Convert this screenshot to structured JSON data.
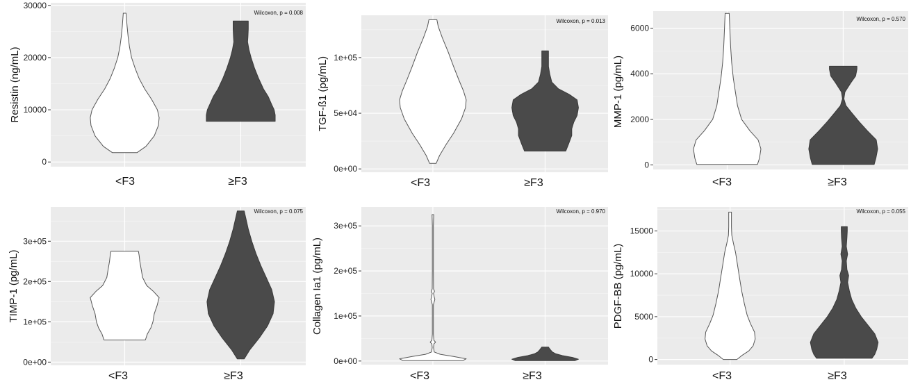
{
  "colors": {
    "panel_bg": "#ebebeb",
    "grid_major": "#ffffff",
    "grid_minor": "#f4f4f4",
    "violin_lt_fill": "#ffffff",
    "violin_ge_fill": "#4a4a4a",
    "outline": "#555555"
  },
  "chart_data": [
    {
      "type": "violin",
      "ylabel": "Resistin (ng/mL)",
      "annotation": "Wilcoxon, p = 0.008",
      "categories": [
        "<F3",
        "≥F3"
      ],
      "yticks": [
        0,
        10000,
        20000,
        30000
      ],
      "ytick_labels": [
        "0",
        "10000",
        "20000",
        "30000"
      ],
      "ylim": [
        -900,
        30500
      ],
      "series": [
        {
          "category": "<F3",
          "fill": "white",
          "profile": [
            [
              1800,
              0.36
            ],
            [
              3000,
              0.62
            ],
            [
              5000,
              0.86
            ],
            [
              7000,
              0.98
            ],
            [
              8500,
              1.0
            ],
            [
              10000,
              0.95
            ],
            [
              12000,
              0.78
            ],
            [
              14000,
              0.58
            ],
            [
              16000,
              0.42
            ],
            [
              18000,
              0.3
            ],
            [
              20000,
              0.2
            ],
            [
              22000,
              0.14
            ],
            [
              24000,
              0.1
            ],
            [
              26000,
              0.07
            ],
            [
              28500,
              0.04
            ]
          ]
        },
        {
          "category": "≥F3",
          "fill": "dark",
          "profile": [
            [
              7800,
              1.0
            ],
            [
              9000,
              1.0
            ],
            [
              10000,
              0.97
            ],
            [
              11000,
              0.9
            ],
            [
              12500,
              0.8
            ],
            [
              14000,
              0.66
            ],
            [
              16000,
              0.52
            ],
            [
              18000,
              0.4
            ],
            [
              20000,
              0.3
            ],
            [
              21500,
              0.24
            ],
            [
              23000,
              0.2
            ],
            [
              24000,
              0.21
            ],
            [
              25500,
              0.22
            ],
            [
              27000,
              0.22
            ]
          ]
        }
      ]
    },
    {
      "type": "violin",
      "ylabel": "TGF-ß1 (pg/mL)",
      "annotation": "Wilcoxon, p = 0.013",
      "categories": [
        "<F3",
        "≥F3"
      ],
      "yticks": [
        0,
        50000,
        100000
      ],
      "ytick_labels": [
        "0e+00",
        "5e+04",
        "1e+05"
      ],
      "ylim": [
        -3000,
        138000
      ],
      "series": [
        {
          "category": "<F3",
          "fill": "white",
          "profile": [
            [
              5000,
              0.1
            ],
            [
              12000,
              0.2
            ],
            [
              22000,
              0.4
            ],
            [
              32000,
              0.62
            ],
            [
              45000,
              0.86
            ],
            [
              55000,
              0.98
            ],
            [
              62000,
              1.0
            ],
            [
              70000,
              0.92
            ],
            [
              80000,
              0.78
            ],
            [
              92000,
              0.62
            ],
            [
              105000,
              0.46
            ],
            [
              118000,
              0.28
            ],
            [
              128000,
              0.16
            ],
            [
              134000,
              0.12
            ]
          ]
        },
        {
          "category": "≥F3",
          "fill": "dark",
          "profile": [
            [
              16000,
              0.62
            ],
            [
              22000,
              0.7
            ],
            [
              30000,
              0.8
            ],
            [
              36000,
              0.8
            ],
            [
              42000,
              0.86
            ],
            [
              48000,
              0.96
            ],
            [
              55000,
              1.0
            ],
            [
              62000,
              0.96
            ],
            [
              67000,
              0.72
            ],
            [
              72000,
              0.4
            ],
            [
              78000,
              0.2
            ],
            [
              85000,
              0.14
            ],
            [
              92000,
              0.1
            ],
            [
              100000,
              0.1
            ],
            [
              106000,
              0.1
            ]
          ]
        }
      ]
    },
    {
      "type": "violin",
      "ylabel": "MMP-1 (pg/mL)",
      "annotation": "Wilcoxon, p = 0.570",
      "categories": [
        "<F3",
        "≥F3"
      ],
      "yticks": [
        0,
        2000,
        4000,
        6000
      ],
      "ytick_labels": [
        "0",
        "2000",
        "4000",
        "6000"
      ],
      "ylim": [
        -200,
        6750
      ],
      "series": [
        {
          "category": "<F3",
          "fill": "white",
          "profile": [
            [
              20,
              0.88
            ],
            [
              300,
              0.94
            ],
            [
              700,
              0.98
            ],
            [
              1100,
              0.9
            ],
            [
              1500,
              0.66
            ],
            [
              2000,
              0.42
            ],
            [
              2600,
              0.3
            ],
            [
              3200,
              0.24
            ],
            [
              3800,
              0.18
            ],
            [
              4500,
              0.13
            ],
            [
              5200,
              0.1
            ],
            [
              5900,
              0.08
            ],
            [
              6650,
              0.06
            ]
          ]
        },
        {
          "category": "≥F3",
          "fill": "dark",
          "profile": [
            [
              20,
              0.9
            ],
            [
              300,
              0.95
            ],
            [
              700,
              1.0
            ],
            [
              1100,
              0.96
            ],
            [
              1500,
              0.7
            ],
            [
              1900,
              0.46
            ],
            [
              2300,
              0.24
            ],
            [
              2600,
              0.08
            ],
            [
              2900,
              0.02
            ],
            [
              3200,
              0.05
            ],
            [
              3600,
              0.22
            ],
            [
              3900,
              0.36
            ],
            [
              4200,
              0.4
            ],
            [
              4330,
              0.4
            ]
          ]
        }
      ]
    },
    {
      "type": "violin",
      "ylabel": "TIMP-1 (pg/mL)",
      "annotation": "Wilcoxon, p = 0.075",
      "categories": [
        "<F3",
        "≥F3"
      ],
      "yticks": [
        0,
        100000,
        200000,
        300000
      ],
      "ytick_labels": [
        "0e+00",
        "1e+05",
        "2e+05",
        "3e+05"
      ],
      "ylim": [
        -8000,
        385000
      ],
      "series": [
        {
          "category": "<F3",
          "fill": "white",
          "profile": [
            [
              55000,
              0.6
            ],
            [
              70000,
              0.66
            ],
            [
              85000,
              0.76
            ],
            [
              100000,
              0.82
            ],
            [
              120000,
              0.86
            ],
            [
              140000,
              0.94
            ],
            [
              160000,
              1.0
            ],
            [
              175000,
              0.84
            ],
            [
              190000,
              0.64
            ],
            [
              210000,
              0.52
            ],
            [
              230000,
              0.48
            ],
            [
              250000,
              0.44
            ],
            [
              265000,
              0.42
            ],
            [
              275000,
              0.4
            ]
          ]
        },
        {
          "category": "≥F3",
          "fill": "dark",
          "profile": [
            [
              8000,
              0.1
            ],
            [
              30000,
              0.26
            ],
            [
              60000,
              0.54
            ],
            [
              90000,
              0.78
            ],
            [
              120000,
              0.94
            ],
            [
              150000,
              0.98
            ],
            [
              180000,
              0.9
            ],
            [
              210000,
              0.74
            ],
            [
              240000,
              0.58
            ],
            [
              270000,
              0.44
            ],
            [
              300000,
              0.32
            ],
            [
              330000,
              0.22
            ],
            [
              360000,
              0.14
            ],
            [
              375000,
              0.1
            ]
          ]
        }
      ]
    },
    {
      "type": "violin",
      "ylabel": "Collagen Ia1 (pg/mL)",
      "annotation": "Wilcoxon, p = 0.970",
      "categories": [
        "<F3",
        "≥F3"
      ],
      "yticks": [
        0,
        100000,
        200000,
        300000
      ],
      "ytick_labels": [
        "0e+00",
        "1e+05",
        "2e+05",
        "3e+05"
      ],
      "ylim": [
        -8000,
        342000
      ],
      "series": [
        {
          "category": "<F3",
          "fill": "white",
          "profile": [
            [
              1000,
              0.9
            ],
            [
              5000,
              1.0
            ],
            [
              10000,
              0.62
            ],
            [
              15000,
              0.22
            ],
            [
              20000,
              0.04
            ],
            [
              30000,
              0.02
            ],
            [
              38000,
              0.03
            ],
            [
              42000,
              0.08
            ],
            [
              46000,
              0.03
            ],
            [
              60000,
              0.015
            ],
            [
              125000,
              0.015
            ],
            [
              132000,
              0.04
            ],
            [
              137000,
              0.06
            ],
            [
              142000,
              0.04
            ],
            [
              150000,
              0.02
            ],
            [
              155000,
              0.05
            ],
            [
              160000,
              0.02
            ],
            [
              200000,
              0.015
            ],
            [
              300000,
              0.015
            ],
            [
              322000,
              0.025
            ],
            [
              325000,
              0.025
            ]
          ]
        },
        {
          "category": "≥F3",
          "fill": "dark",
          "profile": [
            [
              1000,
              0.9
            ],
            [
              4000,
              1.0
            ],
            [
              8000,
              0.82
            ],
            [
              12000,
              0.52
            ],
            [
              16000,
              0.32
            ],
            [
              20000,
              0.22
            ],
            [
              25000,
              0.16
            ],
            [
              29000,
              0.12
            ],
            [
              31000,
              0.1
            ]
          ]
        }
      ]
    },
    {
      "type": "violin",
      "ylabel": "PDGF-BB (pg/mL)",
      "annotation": "Wilcoxon, p = 0.055",
      "categories": [
        "<F3",
        "≥F3"
      ],
      "yticks": [
        0,
        5000,
        10000,
        15000
      ],
      "ytick_labels": [
        "0",
        "5000",
        "10000",
        "15000"
      ],
      "ylim": [
        -600,
        17800
      ],
      "series": [
        {
          "category": "<F3",
          "fill": "white",
          "profile": [
            [
              0,
              0.2
            ],
            [
              500,
              0.36
            ],
            [
              1000,
              0.55
            ],
            [
              1600,
              0.68
            ],
            [
              2400,
              0.74
            ],
            [
              3200,
              0.72
            ],
            [
              4200,
              0.6
            ],
            [
              5200,
              0.5
            ],
            [
              6500,
              0.42
            ],
            [
              8000,
              0.34
            ],
            [
              9500,
              0.28
            ],
            [
              11000,
              0.22
            ],
            [
              12500,
              0.16
            ],
            [
              13500,
              0.1
            ],
            [
              14500,
              0.05
            ],
            [
              15500,
              0.04
            ],
            [
              16500,
              0.04
            ],
            [
              17200,
              0.04
            ]
          ]
        },
        {
          "category": "≥F3",
          "fill": "dark",
          "profile": [
            [
              150,
              0.82
            ],
            [
              600,
              0.9
            ],
            [
              1200,
              0.96
            ],
            [
              2000,
              1.0
            ],
            [
              3000,
              0.9
            ],
            [
              4000,
              0.7
            ],
            [
              5000,
              0.5
            ],
            [
              6000,
              0.34
            ],
            [
              7000,
              0.22
            ],
            [
              8000,
              0.15
            ],
            [
              9000,
              0.1
            ],
            [
              9800,
              0.13
            ],
            [
              10500,
              0.08
            ],
            [
              11500,
              0.06
            ],
            [
              12300,
              0.1
            ],
            [
              13200,
              0.06
            ],
            [
              14200,
              0.08
            ],
            [
              15000,
              0.09
            ],
            [
              15500,
              0.09
            ]
          ]
        }
      ]
    }
  ]
}
